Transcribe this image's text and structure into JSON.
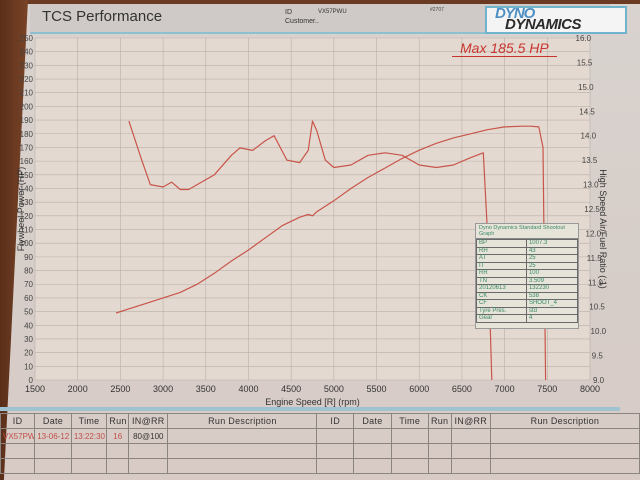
{
  "header": {
    "title": "TCS Performance",
    "id_label": "ID",
    "customer_label": "Customer..",
    "id_value": "VX57PWU",
    "run_number": "#2707",
    "logo_top": "DYNO",
    "logo_bottom": "DYNAMICS"
  },
  "max_label": "Max 185.5 HP",
  "info_box": {
    "title": "Dyno Dynamics Standard Shootout Graph",
    "rows": [
      {
        "k": "BP",
        "v": "1007.3"
      },
      {
        "k": "RH",
        "v": "43"
      },
      {
        "k": "AT",
        "v": "25"
      },
      {
        "k": "IT",
        "v": "25"
      },
      {
        "k": "RR",
        "v": "100"
      },
      {
        "k": "TN",
        "v": "3.509"
      },
      {
        "k": "20120613",
        "v": "132230"
      },
      {
        "k": "CK",
        "v": "538"
      },
      {
        "k": "CF",
        "v": "SHOOT_4"
      },
      {
        "k": "Tyre Pres.",
        "v": "std"
      },
      {
        "k": "Gear",
        "v": "4"
      }
    ]
  },
  "run_table": {
    "headers": [
      "ID",
      "Date",
      "Time",
      "Run",
      "IN@RR",
      "Run Description",
      "ID",
      "Date",
      "Time",
      "Run",
      "IN@RR",
      "Run Description"
    ],
    "rows": [
      [
        "VX57PWU",
        "13-06-12",
        "13:22:30",
        "16",
        "80@100",
        "",
        "",
        "",
        "",
        "",
        "",
        ""
      ],
      [
        "",
        "",
        "",
        "",
        "",
        "",
        "",
        "",
        "",
        "",
        "",
        ""
      ],
      [
        "",
        "",
        "",
        "",
        "",
        "",
        "",
        "",
        "",
        "",
        "",
        ""
      ]
    ]
  },
  "chart_data": {
    "type": "line",
    "title": "TCS Performance",
    "xlabel": "Engine Speed [R] (rpm)",
    "ylabel": "Flywheel Power (HP)",
    "y2label": "High Speed Air/Fuel Ratio (:1)",
    "xlim": [
      1500,
      8000
    ],
    "ylim": [
      0,
      250
    ],
    "y2lim": [
      9.0,
      16.0
    ],
    "x_ticks": [
      1500,
      2000,
      2500,
      3000,
      3500,
      4000,
      4500,
      5000,
      5500,
      6000,
      6500,
      7000,
      7500,
      8000
    ],
    "y_ticks": [
      0,
      10,
      20,
      30,
      40,
      50,
      60,
      70,
      80,
      90,
      100,
      110,
      120,
      130,
      140,
      150,
      160,
      170,
      180,
      190,
      200,
      210,
      220,
      230,
      240,
      250
    ],
    "y2_ticks": [
      "9.0",
      "9.5",
      "10.0",
      "10.5",
      "11.0",
      "11.5",
      "12.0",
      "12.5",
      "13.0",
      "13.5",
      "14.0",
      "14.5",
      "15.0",
      "15.5",
      "16.0"
    ],
    "grid": true,
    "annotation": "Max 185.5 HP",
    "series": [
      {
        "name": "Flywheel Power (HP)",
        "axis": "left",
        "color": "#c8554a",
        "x": [
          2450,
          2800,
          3000,
          3200,
          3400,
          3600,
          3800,
          4000,
          4200,
          4400,
          4600,
          4700,
          4750,
          4800,
          5000,
          5200,
          5400,
          5600,
          5800,
          6000,
          6200,
          6400,
          6600,
          6800,
          7000,
          7200,
          7300,
          7400,
          7450,
          7480
        ],
        "values": [
          49,
          56,
          60,
          64,
          70,
          78,
          87,
          95,
          104,
          113,
          119,
          121,
          120,
          123,
          131,
          140,
          148,
          155,
          162,
          168,
          173,
          177,
          180,
          183,
          185,
          185.5,
          185.5,
          185,
          170,
          0
        ]
      },
      {
        "name": "High Speed Air/Fuel Ratio",
        "axis": "right",
        "color": "#c8554a",
        "x": [
          2600,
          2750,
          2850,
          3000,
          3100,
          3200,
          3300,
          3450,
          3600,
          3800,
          3900,
          4050,
          4200,
          4300,
          4450,
          4600,
          4700,
          4750,
          4800,
          4900,
          5000,
          5200,
          5400,
          5600,
          5800,
          6000,
          6200,
          6400,
          6600,
          6750,
          6800,
          6850
        ],
        "values": [
          14.3,
          13.5,
          13.0,
          12.95,
          13.05,
          12.9,
          12.9,
          13.05,
          13.2,
          13.6,
          13.75,
          13.7,
          13.9,
          14.0,
          13.5,
          13.45,
          13.7,
          14.3,
          14.1,
          13.5,
          13.35,
          13.4,
          13.6,
          13.65,
          13.6,
          13.4,
          13.35,
          13.4,
          13.55,
          13.65,
          12.0,
          9.0
        ]
      }
    ]
  }
}
